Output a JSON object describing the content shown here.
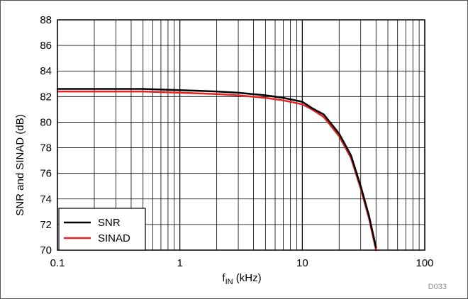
{
  "chart_data": {
    "type": "line",
    "title": "",
    "xlabel": {
      "main": "f",
      "sub": "IN",
      "rest": " (kHz)"
    },
    "ylabel": "SNR and SINAD (dB)",
    "x_scale": "log",
    "xlim": [
      0.1,
      100
    ],
    "ylim": [
      70,
      88
    ],
    "x_ticks": [
      0.1,
      1,
      10,
      100
    ],
    "x_tick_labels": [
      "0.1",
      "1",
      "10",
      "100"
    ],
    "y_ticks": [
      70,
      72,
      74,
      76,
      78,
      80,
      82,
      84,
      86,
      88
    ],
    "y_tick_labels": [
      "70",
      "72",
      "74",
      "76",
      "78",
      "80",
      "82",
      "84",
      "86",
      "88"
    ],
    "grid": true,
    "legend_position": "bottom-left",
    "series": [
      {
        "name": "SNR",
        "color": "#000000",
        "x": [
          0.1,
          0.2,
          0.5,
          1,
          2,
          3,
          5,
          7,
          10,
          12,
          15,
          20,
          25,
          30,
          35,
          40
        ],
        "y": [
          82.6,
          82.6,
          82.6,
          82.5,
          82.4,
          82.3,
          82.1,
          81.9,
          81.6,
          81.1,
          80.6,
          79.1,
          77.4,
          75.0,
          72.7,
          70.2
        ]
      },
      {
        "name": "SINAD",
        "color": "#e8211f",
        "x": [
          0.1,
          0.2,
          0.5,
          1,
          2,
          3,
          5,
          7,
          10,
          12,
          15,
          20,
          25,
          30,
          35,
          40
        ],
        "y": [
          82.4,
          82.4,
          82.4,
          82.3,
          82.2,
          82.1,
          81.9,
          81.7,
          81.4,
          81.0,
          80.4,
          78.9,
          77.2,
          74.8,
          72.5,
          70.0
        ]
      }
    ],
    "figure_code": "D033"
  }
}
